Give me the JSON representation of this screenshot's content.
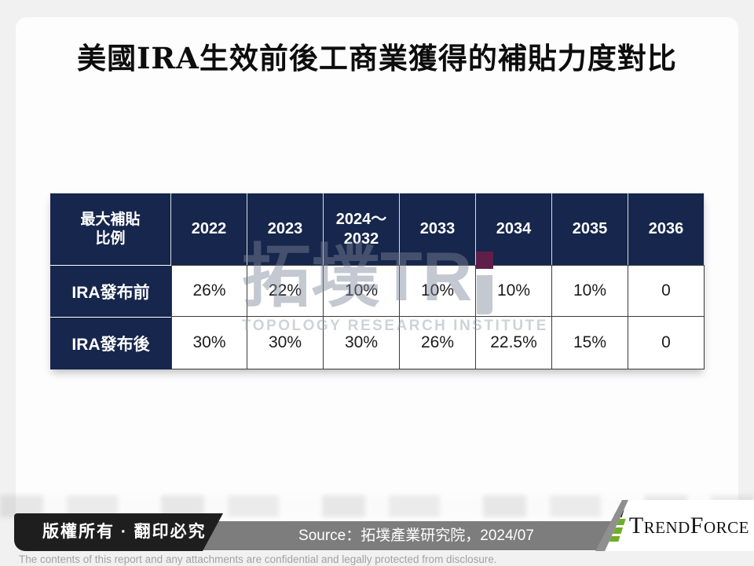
{
  "page": {
    "title": "美國IRA生效前後工商業獲得的補貼力度對比"
  },
  "table": {
    "header": [
      "最大補貼\n比例",
      "2022",
      "2023",
      "2024～\n2032",
      "2033",
      "2034",
      "2035",
      "2036"
    ],
    "rows": [
      {
        "label": "IRA發布前",
        "values": [
          "26%",
          "22%",
          "10%",
          "10%",
          "10%",
          "10%",
          "0"
        ]
      },
      {
        "label": "IRA發布後",
        "values": [
          "30%",
          "30%",
          "30%",
          "26%",
          "22.5%",
          "15%",
          "0"
        ]
      }
    ]
  },
  "watermark": {
    "text_main": "拓墣TR",
    "subtext": "TOPOLOGY RESEARCH INSTITUTE",
    "dot_color": "#5e1f4a"
  },
  "footer": {
    "copyright": "版權所有 · 翻印必究",
    "source": "Source：拓墣產業研究院，2024/07",
    "brand": "TrendForce",
    "disclaimer": "The contents of this report and any attachments are confidential and legally protected from disclosure."
  },
  "colors": {
    "navy": "#16264c",
    "badge_black": "#1e1e1e",
    "bar_gray": "#7d7d7d",
    "brand_green": "#6fae28",
    "watermark_dot": "#5e1f4a"
  }
}
